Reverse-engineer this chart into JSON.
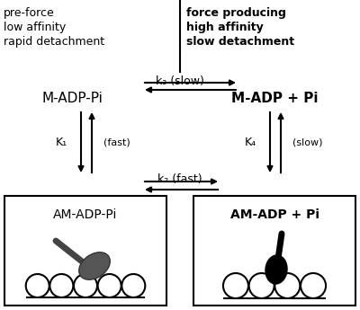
{
  "bg_color": "#ffffff",
  "left_header_lines": [
    "pre-force",
    "low affinity",
    "rapid detachment"
  ],
  "right_header_lines": [
    "force producing",
    "high affinity",
    "slow detachment"
  ],
  "top_left_label": "M-ADP-Pi",
  "top_right_label": "M-ADP + Pi",
  "bottom_left_label": "AM-ADP-Pi",
  "bottom_right_label": "AM-ADP + Pi",
  "k3_label": "k₃ (slow)",
  "k2_label": "k₂ (fast)",
  "K1_label": "K₁",
  "K4_label": "K₄",
  "fast_label": "(fast)",
  "slow_label": "(slow)"
}
